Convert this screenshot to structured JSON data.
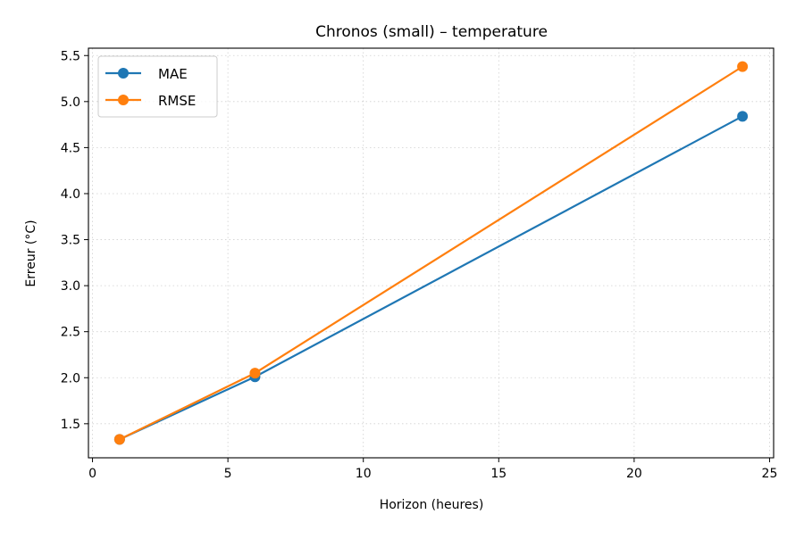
{
  "chart_data": {
    "type": "line",
    "title": "Chronos (small) – temperature",
    "xlabel": "Horizon (heures)",
    "ylabel": "Erreur (°C)",
    "xlim": [
      -0.15,
      25.15
    ],
    "ylim": [
      1.13,
      5.58
    ],
    "xticks": [
      0,
      5,
      10,
      15,
      20,
      25
    ],
    "yticks": [
      1.5,
      2.0,
      2.5,
      3.0,
      3.5,
      4.0,
      4.5,
      5.0,
      5.5
    ],
    "xtick_labels": [
      "0",
      "5",
      "10",
      "15",
      "20",
      "25"
    ],
    "ytick_labels": [
      "1.5",
      "2.0",
      "2.5",
      "3.0",
      "3.5",
      "4.0",
      "4.5",
      "5.0",
      "5.5"
    ],
    "grid": true,
    "legend_position": "upper-left",
    "x": [
      1,
      6,
      24
    ],
    "series": [
      {
        "name": "MAE",
        "values": [
          1.33,
          2.01,
          4.84
        ],
        "color": "#1f77b4",
        "marker": "circle"
      },
      {
        "name": "RMSE",
        "values": [
          1.33,
          2.05,
          5.38
        ],
        "color": "#ff7f0e",
        "marker": "circle"
      }
    ]
  }
}
